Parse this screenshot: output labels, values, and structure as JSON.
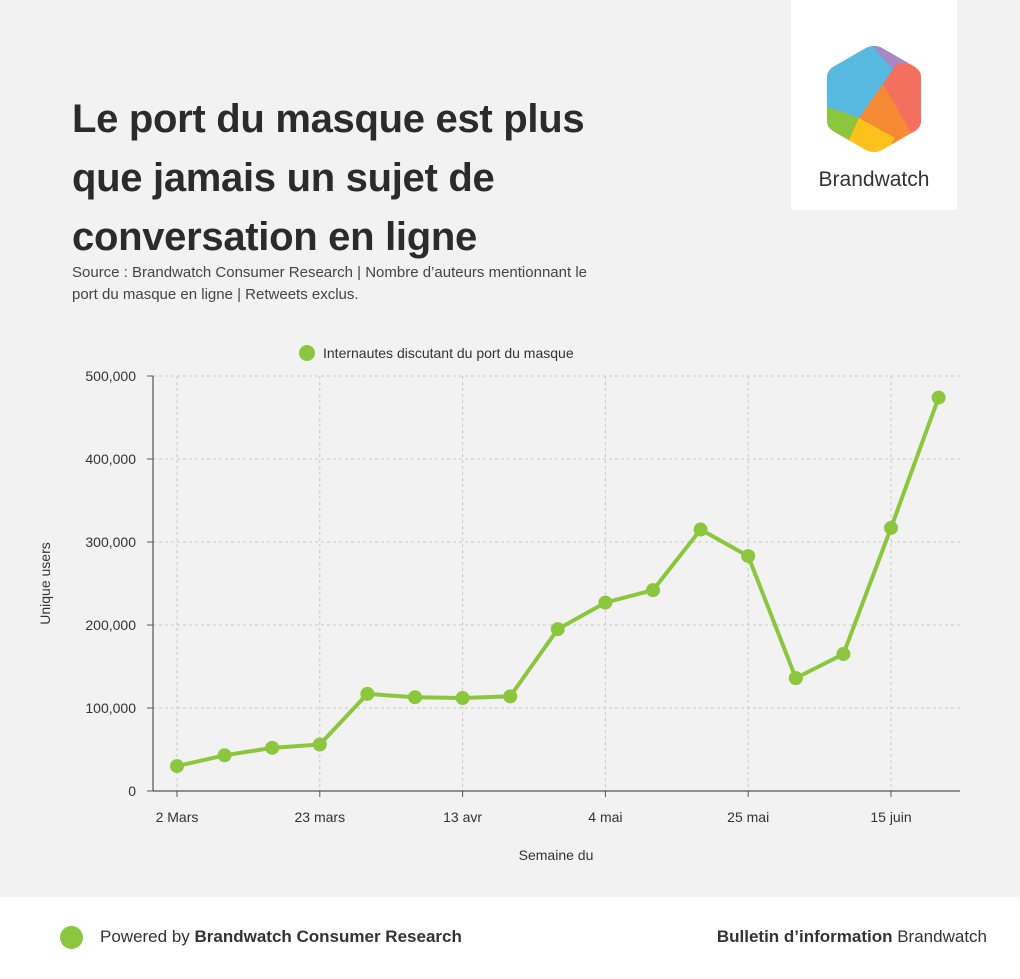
{
  "header": {
    "title": "Le port du masque est plus que jamais un sujet de conversation en ligne",
    "subtitle": "Source : Brandwatch Consumer Research | Nombre d’auteurs mentionnant le port du masque en ligne | Retweets exclus."
  },
  "logo": {
    "name": "Brandwatch",
    "icon": "brandwatch-hexagon-icon"
  },
  "chart_data": {
    "type": "line",
    "title": "",
    "xlabel": "Semaine du",
    "ylabel": "Unique users",
    "ylim": [
      0,
      500000
    ],
    "yticks": [
      0,
      100000,
      200000,
      300000,
      400000,
      500000
    ],
    "ytick_labels": [
      "0",
      "100,000",
      "200,000",
      "300,000",
      "400,000",
      "500,000"
    ],
    "xtick_labels": [
      {
        "index": 0,
        "label": "2 Mars"
      },
      {
        "index": 3,
        "label": "23 mars"
      },
      {
        "index": 6,
        "label": "13 avr"
      },
      {
        "index": 9,
        "label": "4 mai"
      },
      {
        "index": 12,
        "label": "25 mai"
      },
      {
        "index": 15,
        "label": "15 juin"
      }
    ],
    "grid": true,
    "legend_position": "top-center",
    "series": [
      {
        "name": "Internautes discutant du port du masque",
        "color": "#8cc63f",
        "values": [
          30000,
          43000,
          52000,
          56000,
          117000,
          113000,
          112000,
          114000,
          195000,
          227000,
          242000,
          315000,
          283000,
          136000,
          165000,
          317000,
          474000
        ]
      }
    ]
  },
  "footer": {
    "left_prefix": "Powered by ",
    "left_bold": "Brandwatch Consumer Research",
    "right_bold": "Bulletin d’information",
    "right_suffix": " Brandwatch"
  }
}
